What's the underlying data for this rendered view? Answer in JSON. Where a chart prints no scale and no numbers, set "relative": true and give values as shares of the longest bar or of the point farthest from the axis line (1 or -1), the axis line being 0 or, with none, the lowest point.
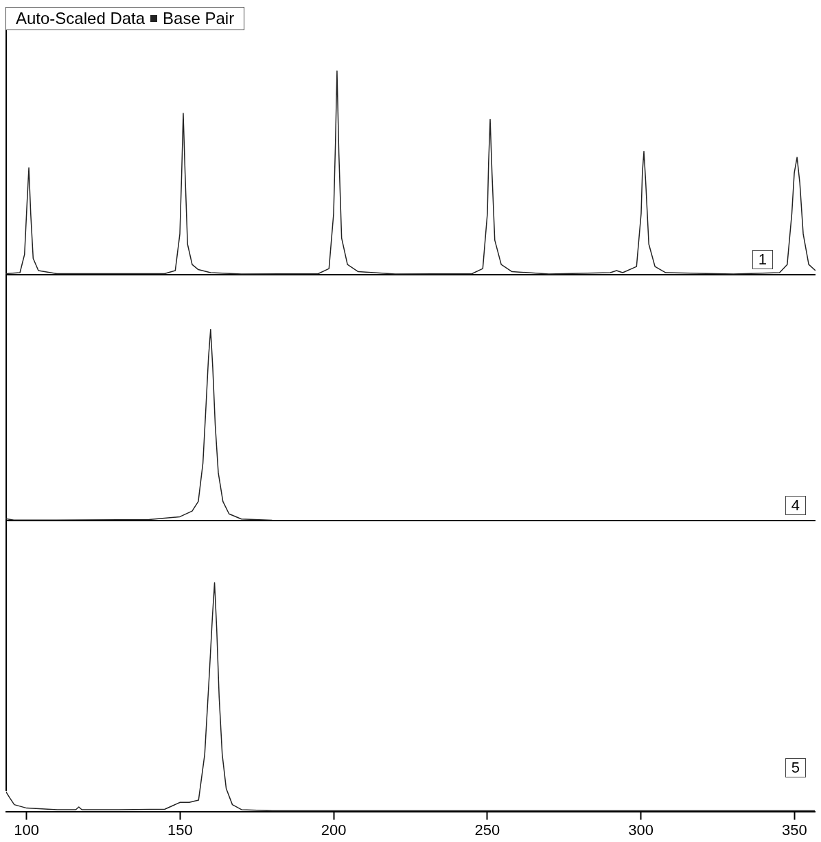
{
  "chart_data": [
    {
      "type": "line",
      "title": "Auto-Scaled Data",
      "xlabel": "Base Pair",
      "relative": true,
      "marker": "none",
      "tick_labels": false,
      "xlim": [
        93.3,
        356.7
      ],
      "annotations": [
        "1"
      ],
      "series": [
        {
          "color": "#222222",
          "x": [
            93.3,
            98,
            99.5,
            100.3,
            100.9,
            101.5,
            102.3,
            104,
            110,
            145,
            148.5,
            150,
            150.6,
            151.1,
            151.7,
            152.5,
            154,
            156,
            160,
            170,
            195,
            198.5,
            200,
            200.6,
            201.1,
            201.7,
            202.6,
            204.5,
            208,
            220,
            245,
            248.5,
            250,
            250.4,
            250.9,
            251.5,
            252.4,
            254.5,
            258,
            270,
            290,
            292,
            294,
            298.5,
            300,
            300.4,
            300.9,
            301.5,
            302.5,
            304.5,
            308,
            330,
            345,
            347.5,
            349,
            349.8,
            350.7,
            351.6,
            352.7,
            354.5,
            356.7
          ],
          "values": [
            0.005,
            0.01,
            0.1,
            0.35,
            0.525,
            0.3,
            0.08,
            0.02,
            0.005,
            0.005,
            0.02,
            0.2,
            0.5,
            0.792,
            0.5,
            0.15,
            0.05,
            0.025,
            0.01,
            0.003,
            0.005,
            0.03,
            0.3,
            0.65,
            1,
            0.6,
            0.18,
            0.05,
            0.015,
            0.003,
            0.005,
            0.03,
            0.3,
            0.55,
            0.763,
            0.5,
            0.17,
            0.05,
            0.015,
            0.003,
            0.01,
            0.02,
            0.01,
            0.04,
            0.3,
            0.5,
            0.605,
            0.45,
            0.15,
            0.04,
            0.01,
            0.003,
            0.01,
            0.05,
            0.3,
            0.5,
            0.576,
            0.45,
            0.2,
            0.05,
            0.02
          ]
        }
      ]
    },
    {
      "type": "line",
      "relative": true,
      "marker": "none",
      "tick_labels": false,
      "xlim": [
        93.3,
        356.7
      ],
      "annotations": [
        "4"
      ],
      "series": [
        {
          "color": "#222222",
          "x": [
            93.3,
            96,
            110,
            140,
            150,
            154,
            156,
            157.5,
            158.5,
            159.3,
            160,
            160.7,
            161.5,
            162.5,
            164,
            166,
            170,
            180,
            200,
            356.7
          ],
          "values": [
            0.01,
            0.003,
            0.003,
            0.005,
            0.02,
            0.05,
            0.1,
            0.3,
            0.6,
            0.85,
            1,
            0.8,
            0.5,
            0.25,
            0.1,
            0.035,
            0.008,
            0.002,
            0,
            0
          ]
        }
      ]
    },
    {
      "type": "line",
      "relative": true,
      "marker": "none",
      "tick_labels": "x",
      "xlim": [
        93.3,
        356.7
      ],
      "xticks": [
        100,
        150,
        200,
        250,
        300,
        350
      ],
      "annotations": [
        "5"
      ],
      "series": [
        {
          "color": "#222222",
          "x": [
            93.3,
            94.5,
            96,
            100,
            110,
            116,
            117,
            118,
            130,
            145,
            150,
            153,
            156,
            158,
            159.5,
            160.5,
            161.2,
            161.9,
            162.7,
            163.7,
            165,
            167,
            170,
            180,
            356.7
          ],
          "values": [
            0.086,
            0.06,
            0.03,
            0.015,
            0.008,
            0.008,
            0.02,
            0.008,
            0.008,
            0.01,
            0.04,
            0.04,
            0.05,
            0.25,
            0.6,
            0.85,
            1,
            0.8,
            0.5,
            0.25,
            0.1,
            0.03,
            0.008,
            0.003,
            0.003
          ]
        }
      ]
    }
  ]
}
